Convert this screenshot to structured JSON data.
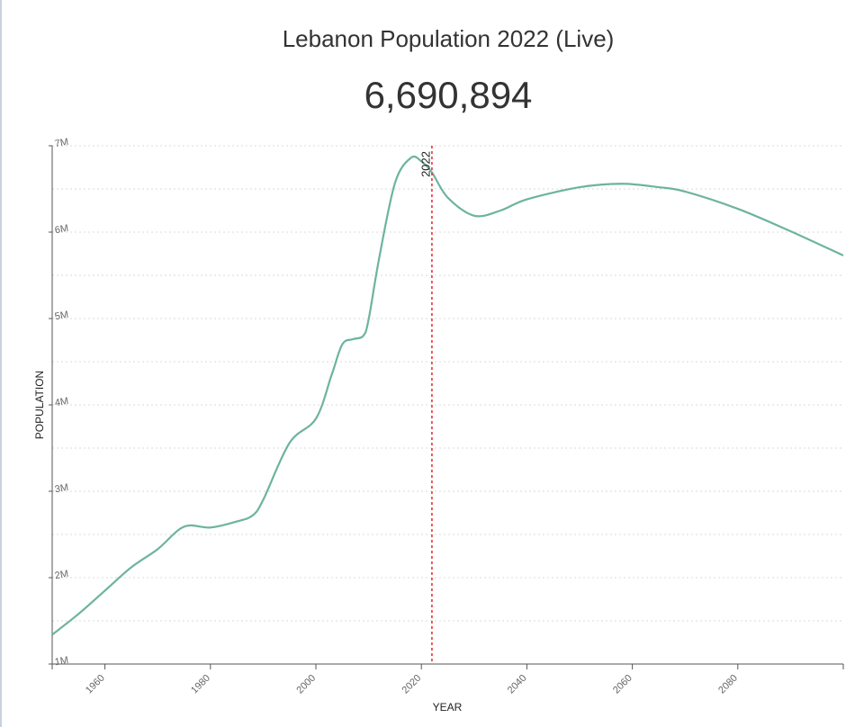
{
  "header": {
    "title": "Lebanon Population 2022 (Live)",
    "live_count": "6,690,894"
  },
  "chart_data": {
    "type": "line",
    "title": "Lebanon Population 2022 (Live)",
    "xlabel": "YEAR",
    "ylabel": "POPULATION",
    "xlim": [
      1950,
      2100
    ],
    "ylim": [
      1000000,
      7000000
    ],
    "x_ticks": [
      1960,
      1980,
      2000,
      2020,
      2040,
      2060,
      2080
    ],
    "x_tick_labels": [
      "1960",
      "1980",
      "2000",
      "2020",
      "2040",
      "2060",
      "2080"
    ],
    "y_ticks": [
      1000000,
      2000000,
      3000000,
      4000000,
      5000000,
      6000000,
      7000000
    ],
    "y_tick_labels": [
      "1M",
      "2M",
      "3M",
      "4M",
      "5M",
      "6M",
      "7M"
    ],
    "grid": "horizontal dotted, every 0.5M",
    "line_color": "#6db3a0",
    "marker_color": "#e8333a",
    "marker": {
      "year": 2022,
      "label": "2022"
    },
    "series": [
      {
        "x": [
          1950,
          1955,
          1960,
          1965,
          1970,
          1975,
          1980,
          1985,
          1988,
          1990,
          1995,
          2000,
          2003,
          2005,
          2007,
          2009,
          2010,
          2012,
          2015,
          2018,
          2020,
          2022,
          2025,
          2030,
          2035,
          2040,
          2050,
          2058,
          2065,
          2070,
          2080,
          2090,
          2100
        ],
        "y": [
          1340000,
          1580000,
          1850000,
          2120000,
          2330000,
          2590000,
          2580000,
          2650000,
          2720000,
          2900000,
          3560000,
          3840000,
          4350000,
          4700000,
          4760000,
          4800000,
          4990000,
          5700000,
          6570000,
          6860000,
          6820000,
          6691000,
          6400000,
          6190000,
          6250000,
          6380000,
          6520000,
          6560000,
          6520000,
          6470000,
          6270000,
          6010000,
          5730000
        ]
      }
    ]
  }
}
